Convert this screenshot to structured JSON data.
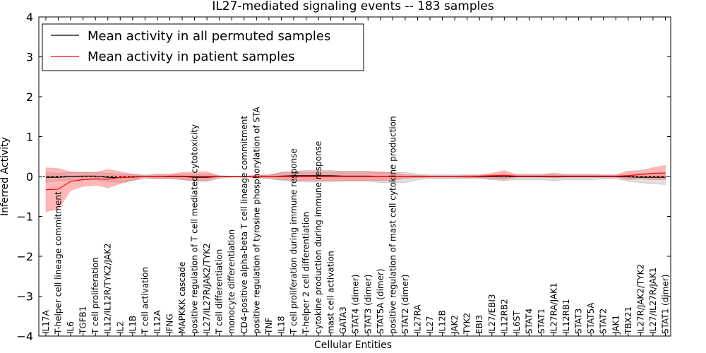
{
  "chart_data": {
    "type": "line",
    "title": "IL27-mediated signaling events -- 183 samples",
    "xlabel": "Cellular Entities",
    "ylabel": "Inferred Activity",
    "ylim": [
      -4,
      4
    ],
    "yticks": [
      4,
      3,
      2,
      1,
      0,
      -1,
      -2,
      -3,
      -4
    ],
    "ytick_labels": [
      "4",
      "3",
      "2",
      "1",
      "0",
      "−1",
      "−2",
      "−3",
      "−4"
    ],
    "legend": {
      "position": "top-left",
      "entries": [
        {
          "label": "Mean activity in all permuted samples",
          "color": "#000000"
        },
        {
          "label": "Mean activity in patient samples",
          "color": "#ff0000"
        }
      ]
    },
    "categories": [
      "IL17A",
      "T-helper cell lineage commitment",
      "IL6",
      "TGFB1",
      "T cell proliferation",
      "IL12/IL12R/TYK2/JAK2",
      "IL2",
      "IL1B",
      "T cell activation",
      "IL12A",
      "IFNG",
      "MAPKKK cascade",
      "positive regulation of T cell mediated cytotoxicity",
      "IL27/IL27R/JAK2/TYK2",
      "T cell differentiation",
      "monocyte differentiation",
      "CD4-positive alpha-beta T cell lineage commitment",
      "positive regulation of tyrosine phosphorylation of STA",
      "TNF",
      "IL18",
      "T cell proliferation during immune response",
      "T-helper 2 cell differentiation",
      "cytokine production during immune response",
      "mast cell activation",
      "GATA3",
      "STAT4 (dimer)",
      "STAT3 (dimer)",
      "STAT5A (dimer)",
      "positive regulation of mast cell cytokine production",
      "STAT2 (dimer)",
      "IL27RA",
      "IL27",
      "IL12B",
      "JAK2",
      "TYK2",
      "EBI3",
      "IL27/EBI3",
      "IL12RB2",
      "IL6ST",
      "STAT4",
      "STAT1",
      "IL27RA/JAK1",
      "IL12RB1",
      "STAT3",
      "STAT5A",
      "STAT2",
      "JAK1",
      "TBX21",
      "IL27R/JAK2/TYK2",
      "IL27/IL27R/JAK1",
      "STAT1 (dimer)"
    ],
    "series": [
      {
        "name": "Mean activity in all permuted samples",
        "color": "#000000",
        "values": [
          -0.02,
          -0.02,
          0.0,
          0.01,
          0.01,
          -0.02,
          -0.03,
          -0.01,
          0.0,
          0.0,
          0.0,
          0.0,
          -0.02,
          -0.02,
          0.0,
          0.0,
          0.0,
          0.0,
          0.0,
          0.01,
          0.02,
          0.02,
          0.02,
          0.02,
          0.01,
          0.01,
          0.01,
          0.0,
          0.0,
          0.0,
          0.0,
          0.0,
          0.0,
          0.0,
          0.0,
          0.0,
          0.0,
          -0.01,
          0.0,
          0.0,
          0.0,
          0.0,
          0.0,
          0.0,
          0.0,
          0.0,
          0.0,
          -0.01,
          -0.02,
          -0.02,
          -0.02
        ],
        "lower": [
          -0.15,
          -0.1,
          -0.08,
          -0.08,
          -0.08,
          -0.12,
          -0.15,
          -0.1,
          -0.05,
          -0.05,
          -0.05,
          -0.08,
          -0.12,
          -0.12,
          -0.05,
          -0.02,
          -0.02,
          -0.03,
          -0.05,
          -0.1,
          -0.12,
          -0.14,
          -0.14,
          -0.14,
          -0.12,
          -0.12,
          -0.12,
          -0.15,
          -0.15,
          -0.15,
          -0.08,
          -0.05,
          -0.05,
          -0.05,
          -0.05,
          -0.05,
          -0.08,
          -0.1,
          -0.08,
          -0.08,
          -0.08,
          -0.1,
          -0.08,
          -0.08,
          -0.08,
          -0.05,
          -0.05,
          -0.12,
          -0.15,
          -0.18,
          -0.2
        ],
        "upper": [
          0.1,
          0.08,
          0.1,
          0.1,
          0.1,
          0.08,
          0.06,
          0.06,
          0.04,
          0.04,
          0.04,
          0.06,
          0.06,
          0.06,
          0.02,
          0.01,
          0.01,
          0.02,
          0.04,
          0.1,
          0.13,
          0.15,
          0.15,
          0.15,
          0.13,
          0.13,
          0.13,
          0.1,
          0.1,
          0.1,
          0.06,
          0.04,
          0.04,
          0.04,
          0.04,
          0.04,
          0.06,
          0.06,
          0.06,
          0.06,
          0.06,
          0.08,
          0.06,
          0.06,
          0.06,
          0.04,
          0.04,
          0.06,
          0.08,
          0.08,
          0.08
        ]
      },
      {
        "name": "Mean activity in patient samples",
        "color": "#ff0000",
        "values": [
          -0.33,
          -0.32,
          -0.12,
          -0.08,
          -0.06,
          -0.07,
          -0.02,
          -0.02,
          0.0,
          0.0,
          0.01,
          0.01,
          0.0,
          0.0,
          0.0,
          0.0,
          0.0,
          0.0,
          0.0,
          0.0,
          0.0,
          0.0,
          0.0,
          0.0,
          0.0,
          0.0,
          0.0,
          0.0,
          0.0,
          0.0,
          0.0,
          0.0,
          0.0,
          0.0,
          0.0,
          0.01,
          0.02,
          0.03,
          0.01,
          0.01,
          0.01,
          0.01,
          0.01,
          0.01,
          0.01,
          0.01,
          0.01,
          0.02,
          0.05,
          0.08,
          0.09
        ],
        "lower": [
          -0.88,
          -0.82,
          -0.35,
          -0.25,
          -0.22,
          -0.28,
          -0.18,
          -0.1,
          -0.02,
          -0.05,
          -0.05,
          -0.08,
          -0.1,
          -0.1,
          -0.02,
          -0.01,
          -0.01,
          -0.02,
          -0.04,
          -0.08,
          -0.1,
          -0.1,
          -0.1,
          -0.1,
          -0.1,
          -0.1,
          -0.1,
          -0.1,
          -0.1,
          -0.05,
          -0.03,
          -0.02,
          -0.02,
          -0.02,
          -0.03,
          -0.03,
          -0.05,
          -0.08,
          -0.02,
          -0.02,
          -0.02,
          -0.04,
          -0.02,
          -0.02,
          -0.02,
          -0.02,
          -0.02,
          -0.08,
          -0.06,
          -0.08,
          -0.08
        ],
        "upper": [
          0.22,
          0.2,
          0.12,
          0.1,
          0.1,
          0.18,
          0.12,
          0.06,
          0.02,
          0.06,
          0.06,
          0.1,
          0.12,
          0.12,
          0.02,
          0.01,
          0.01,
          0.03,
          0.04,
          0.1,
          0.12,
          0.12,
          0.12,
          0.12,
          0.12,
          0.12,
          0.12,
          0.12,
          0.1,
          0.05,
          0.03,
          0.02,
          0.02,
          0.02,
          0.03,
          0.04,
          0.08,
          0.15,
          0.04,
          0.04,
          0.04,
          0.06,
          0.04,
          0.04,
          0.04,
          0.04,
          0.04,
          0.14,
          0.15,
          0.22,
          0.28
        ]
      }
    ]
  }
}
